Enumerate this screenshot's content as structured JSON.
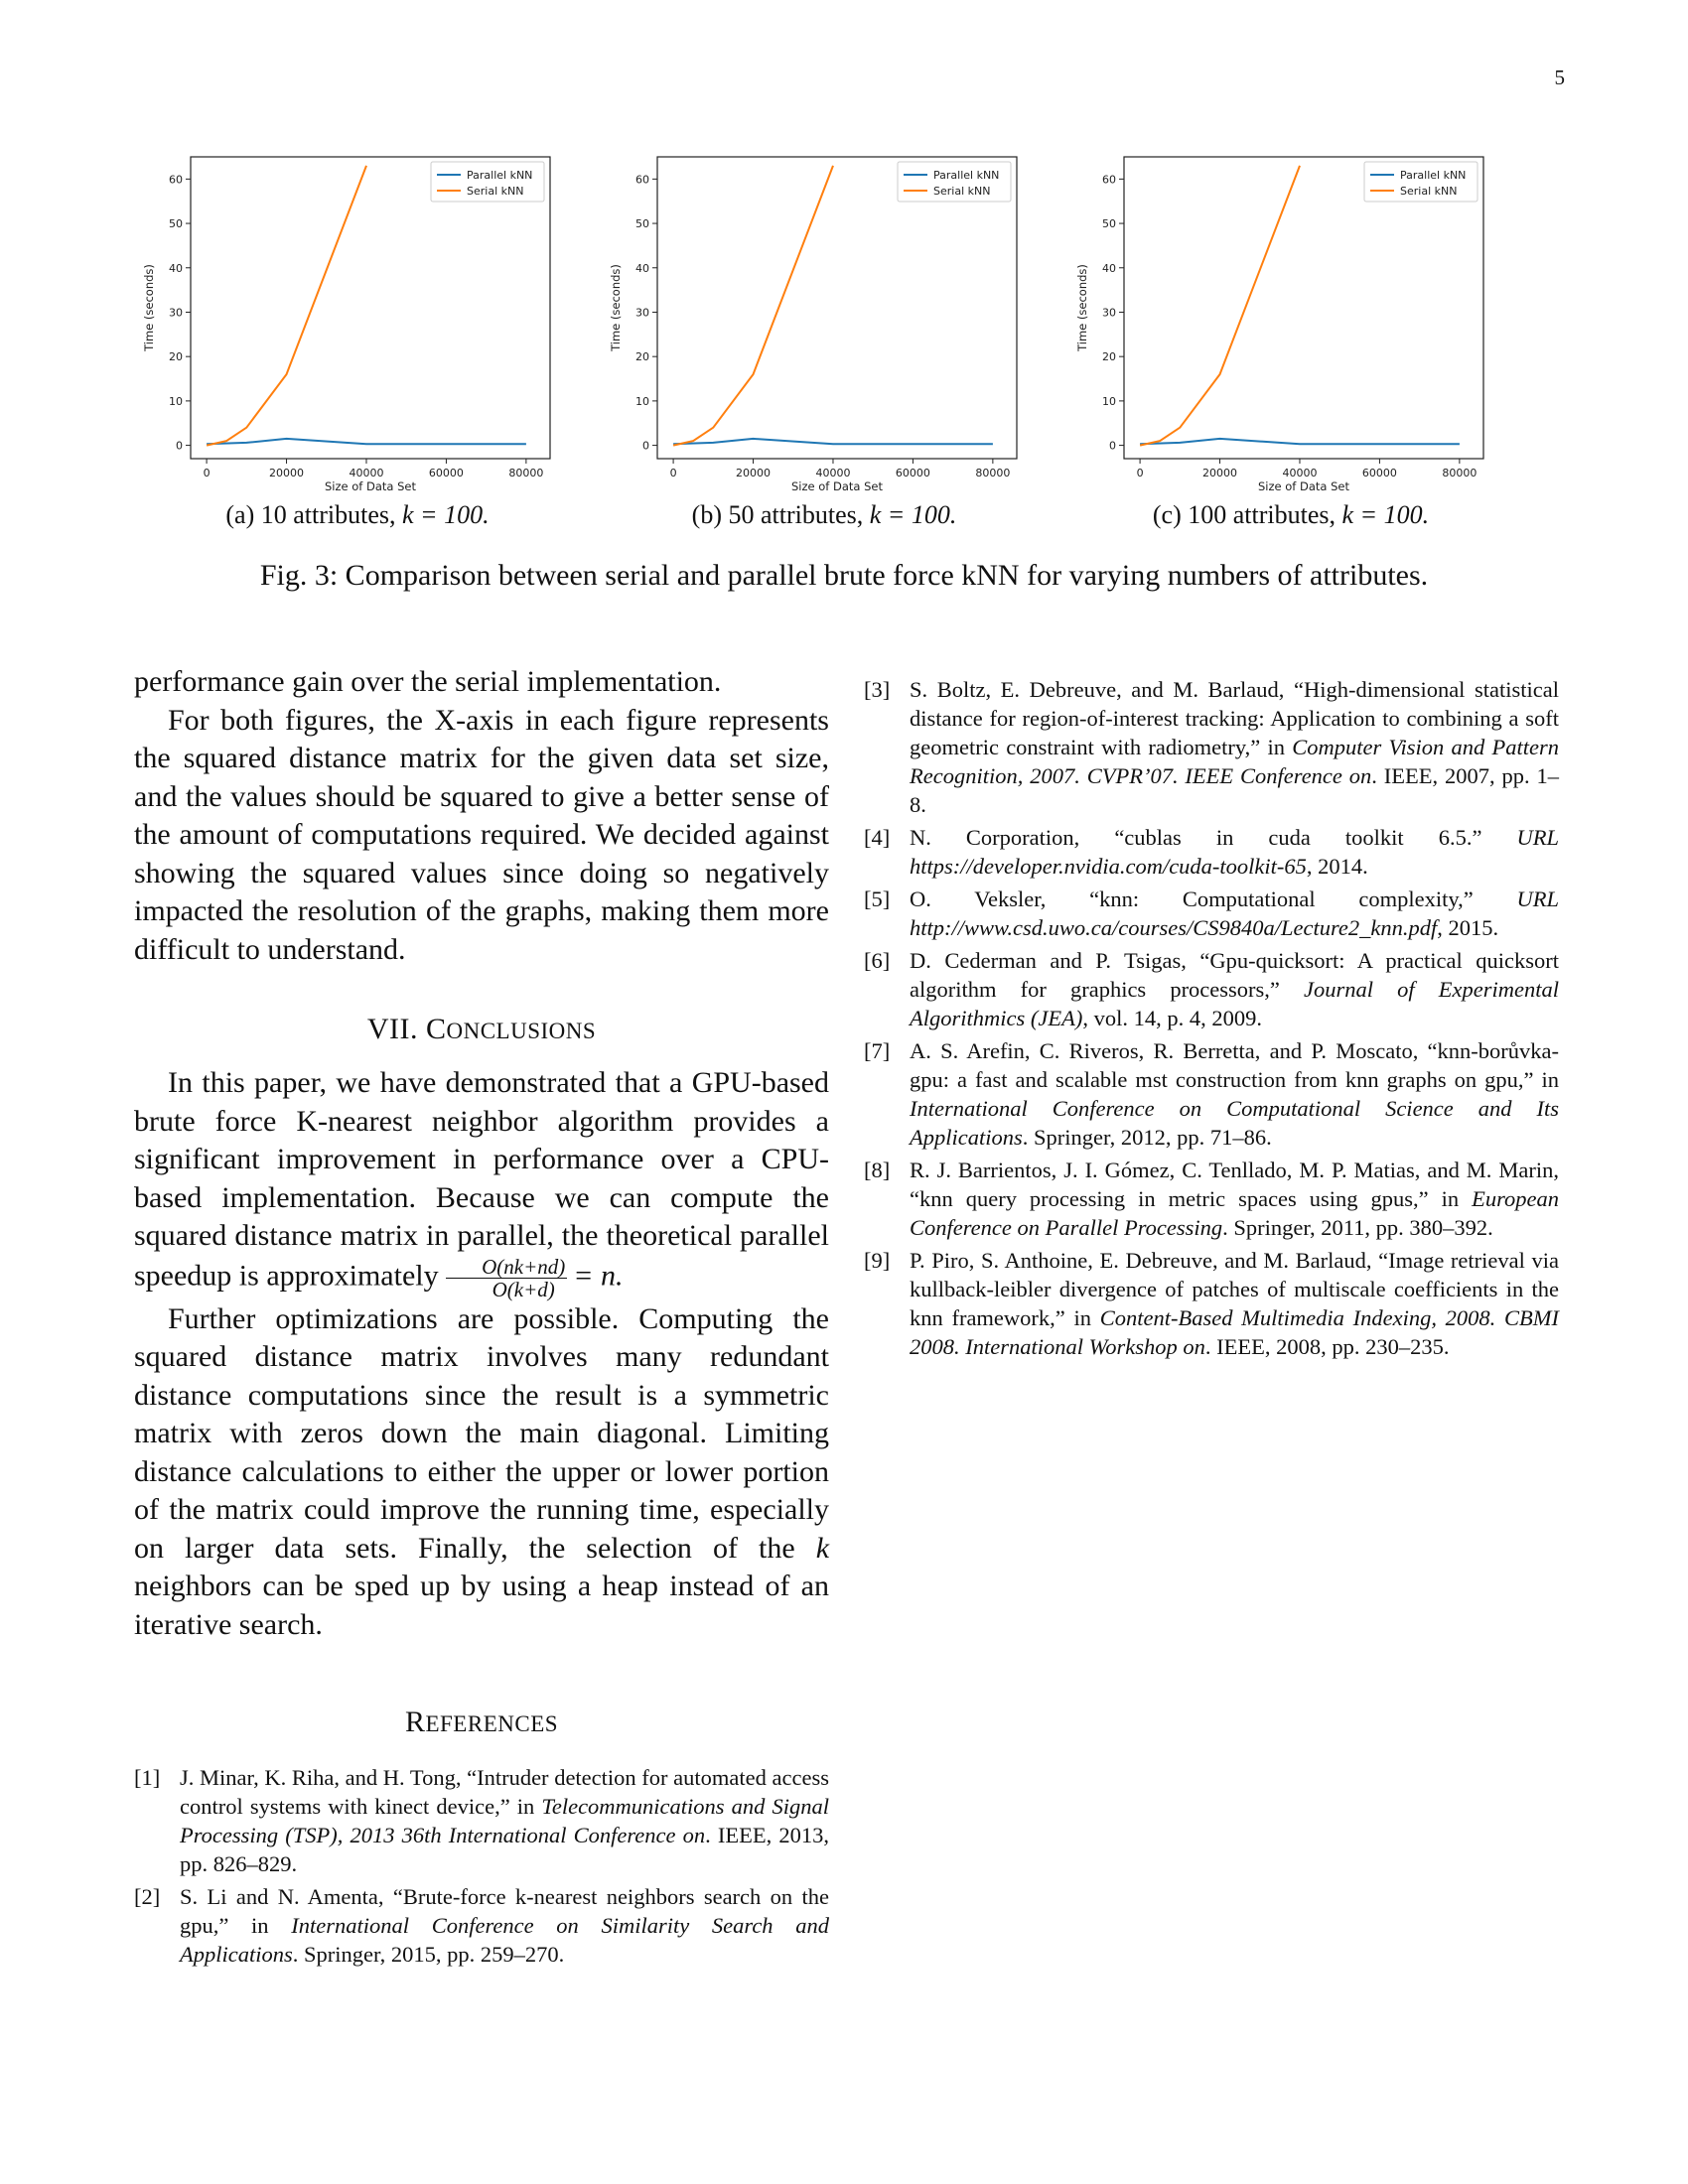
{
  "page_number": "5",
  "figure": {
    "caption": "Fig. 3: Comparison between serial and parallel brute force kNN for varying numbers of attributes.",
    "subfigures": [
      {
        "label": "(a) 10 attributes,",
        "math": "k = 100."
      },
      {
        "label": "(b) 50 attributes,",
        "math": "k = 100."
      },
      {
        "label": "(c) 100 attributes,",
        "math": "k = 100."
      }
    ]
  },
  "chart_data": [
    {
      "type": "line",
      "xlabel": "Size of Data Set",
      "ylabel": "Time (seconds)",
      "xlim": [
        -4000,
        86000
      ],
      "ylim": [
        -3,
        65
      ],
      "xticks": [
        0,
        20000,
        40000,
        60000,
        80000
      ],
      "yticks": [
        0,
        10,
        20,
        30,
        40,
        50,
        60
      ],
      "legend": "top-right",
      "series": [
        {
          "name": "Parallel kNN",
          "color": "#1f77b4",
          "x": [
            0,
            10000,
            20000,
            40000,
            80000
          ],
          "y": [
            0.3,
            0.6,
            1.5,
            0.3,
            0.3
          ]
        },
        {
          "name": "Serial kNN",
          "color": "#ff7f0e",
          "x": [
            0,
            5000,
            10000,
            20000,
            40000
          ],
          "y": [
            0,
            1,
            4,
            16,
            63
          ]
        }
      ]
    },
    {
      "type": "line",
      "xlabel": "Size of Data Set",
      "ylabel": "Time (seconds)",
      "xlim": [
        -4000,
        86000
      ],
      "ylim": [
        -3,
        65
      ],
      "xticks": [
        0,
        20000,
        40000,
        60000,
        80000
      ],
      "yticks": [
        0,
        10,
        20,
        30,
        40,
        50,
        60
      ],
      "legend": "top-right",
      "series": [
        {
          "name": "Parallel kNN",
          "color": "#1f77b4",
          "x": [
            0,
            10000,
            20000,
            40000,
            80000
          ],
          "y": [
            0.3,
            0.6,
            1.5,
            0.3,
            0.3
          ]
        },
        {
          "name": "Serial kNN",
          "color": "#ff7f0e",
          "x": [
            0,
            5000,
            10000,
            20000,
            40000
          ],
          "y": [
            0,
            1,
            4,
            16,
            63
          ]
        }
      ]
    },
    {
      "type": "line",
      "xlabel": "Size of Data Set",
      "ylabel": "Time (seconds)",
      "xlim": [
        -4000,
        86000
      ],
      "ylim": [
        -3,
        65
      ],
      "xticks": [
        0,
        20000,
        40000,
        60000,
        80000
      ],
      "yticks": [
        0,
        10,
        20,
        30,
        40,
        50,
        60
      ],
      "legend": "top-right",
      "series": [
        {
          "name": "Parallel kNN",
          "color": "#1f77b4",
          "x": [
            0,
            10000,
            20000,
            40000,
            80000
          ],
          "y": [
            0.3,
            0.6,
            1.5,
            0.3,
            0.3
          ]
        },
        {
          "name": "Serial kNN",
          "color": "#ff7f0e",
          "x": [
            0,
            5000,
            10000,
            20000,
            40000
          ],
          "y": [
            0,
            1,
            4,
            16,
            63
          ]
        }
      ]
    }
  ],
  "body": {
    "p1": "performance gain over the serial implementation.",
    "p2": "For both figures, the X-axis in each figure represents the squared distance matrix for the given data set size, and the values should be squared to give a better sense of the amount of computations required. We decided against showing the squared values since doing so negatively impacted the resolution of the graphs, making them more difficult to understand.",
    "conclusions_numeral": "VII.",
    "conclusions_first": "C",
    "conclusions_rest": "ONCLUSIONS",
    "p3": "In this paper, we have demonstrated that a GPU-based brute force K-nearest neighbor algorithm provides a significant improvement in performance over a CPU-based implementation. Because we can compute the squared distance matrix in parallel, the theoretical parallel speedup is approximately",
    "p3_frac_num": "O(nk+nd)",
    "p3_frac_den": "O(k+d)",
    "p3_eq": "= n.",
    "p4_before_k": "Further optimizations are possible. Computing the squared distance matrix involves many redundant distance computations since the result is a symmetric matrix with zeros down the main diagonal. Limiting distance calculations to either the upper or lower portion of the matrix could improve the running time, especially on larger data sets. Finally, the selection of the",
    "p4_k": "k",
    "p4_after_k": "neighbors can be sped up by using a heap instead of an iterative search.",
    "references_first": "R",
    "references_rest": "EFERENCES"
  },
  "references_left": [
    {
      "num": "[1]",
      "pre": "J. Minar, K. Riha, and H. Tong, “Intruder detection for automated access control systems with kinect device,” in ",
      "venue": "Telecommunications and Signal Processing (TSP), 2013 36th International Conference on",
      "post": ".   IEEE, 2013, pp. 826–829."
    },
    {
      "num": "[2]",
      "pre": "S. Li and N. Amenta, “Brute-force k-nearest neighbors search on the gpu,” in ",
      "venue": "International Conference on Similarity Search and Applications",
      "post": ".   Springer, 2015, pp. 259–270."
    }
  ],
  "references_right": [
    {
      "num": "[3]",
      "pre": "S. Boltz, E. Debreuve, and M. Barlaud, “High-dimensional statistical distance for region-of-interest tracking: Application to combining a soft geometric constraint with radiometry,” in ",
      "venue": "Computer Vision and Pattern Recognition, 2007. CVPR’07. IEEE Conference on",
      "post": ".   IEEE, 2007, pp. 1–8."
    },
    {
      "num": "[4]",
      "pre": "N. Corporation, “cublas in cuda toolkit 6.5.” ",
      "venue": "URL https://developer.nvidia.com/cuda-toolkit-65",
      "post": ", 2014."
    },
    {
      "num": "[5]",
      "pre": "O. Veksler, “knn: Computational complexity,” ",
      "venue": "URL http://www.csd.uwo.ca/courses/CS9840a/Lecture2_knn.pdf",
      "post": ", 2015."
    },
    {
      "num": "[6]",
      "pre": "D. Cederman and P. Tsigas, “Gpu-quicksort: A practical quicksort algorithm for graphics processors,” ",
      "venue": "Journal of Experimental Algorithmics (JEA)",
      "post": ", vol. 14, p. 4, 2009."
    },
    {
      "num": "[7]",
      "pre": "A. S. Arefin, C. Riveros, R. Berretta, and P. Moscato, “knn-borůvka-gpu: a fast and scalable mst construction from knn graphs on gpu,” in ",
      "venue": "International Conference on Computational Science and Its Applications",
      "post": ".   Springer, 2012, pp. 71–86."
    },
    {
      "num": "[8]",
      "pre": "R. J. Barrientos, J. I. Gómez, C. Tenllado, M. P. Matias, and M. Marin, “knn query processing in metric spaces using gpus,” in ",
      "venue": "European Conference on Parallel Processing",
      "post": ".   Springer, 2011, pp. 380–392."
    },
    {
      "num": "[9]",
      "pre": "P. Piro, S. Anthoine, E. Debreuve, and M. Barlaud, “Image retrieval via kullback-leibler divergence of patches of multiscale coefficients in the knn framework,” in ",
      "venue": "Content-Based Multimedia Indexing, 2008. CBMI 2008. International Workshop on",
      "post": ".   IEEE, 2008, pp. 230–235."
    }
  ]
}
